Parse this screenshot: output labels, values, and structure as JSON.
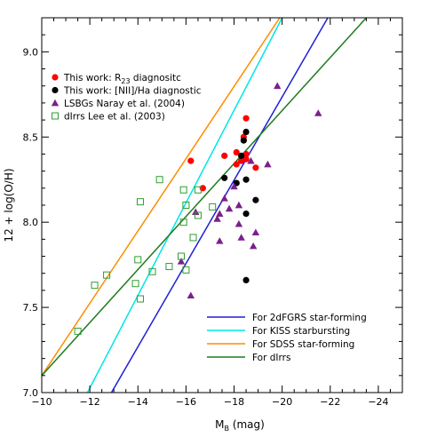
{
  "chart_data": {
    "type": "scatter",
    "xlabel": "M",
    "xlabel_sub": "B",
    "xlabel_unit": " (mag)",
    "ylabel": "12 + log(O/H)",
    "xlim": [
      -10,
      -25
    ],
    "ylim": [
      7.0,
      9.2
    ],
    "x_ticks": [
      {
        "value": -10,
        "label": "−10"
      },
      {
        "value": -12,
        "label": "−12"
      },
      {
        "value": -14,
        "label": "−14"
      },
      {
        "value": -16,
        "label": "−16"
      },
      {
        "value": -18,
        "label": "−18"
      },
      {
        "value": -20,
        "label": "−20"
      },
      {
        "value": -22,
        "label": "−22"
      },
      {
        "value": -24,
        "label": "−24"
      }
    ],
    "y_ticks": [
      {
        "value": 7.0,
        "label": "7.0"
      },
      {
        "value": 7.5,
        "label": "7.5"
      },
      {
        "value": 8.0,
        "label": "8.0"
      },
      {
        "value": 8.5,
        "label": "8.5"
      },
      {
        "value": 9.0,
        "label": "9.0"
      }
    ],
    "grid": false,
    "legend_points_placement": "top-left",
    "legend_lines_placement": "bottom-right",
    "series": [
      {
        "name": "This work: R",
        "name_sub": "23",
        "name_suffix": " diagnositc",
        "marker": "circle-filled",
        "color": "#ff0000",
        "points": [
          {
            "x": -16.2,
            "y": 8.36
          },
          {
            "x": -16.7,
            "y": 8.2
          },
          {
            "x": -17.6,
            "y": 8.39
          },
          {
            "x": -18.1,
            "y": 8.34
          },
          {
            "x": -18.1,
            "y": 8.41
          },
          {
            "x": -18.3,
            "y": 8.36
          },
          {
            "x": -18.4,
            "y": 8.5
          },
          {
            "x": -18.5,
            "y": 8.61
          },
          {
            "x": -18.5,
            "y": 8.4
          },
          {
            "x": -18.5,
            "y": 8.37
          },
          {
            "x": -18.9,
            "y": 8.32
          }
        ]
      },
      {
        "name": "This work: [NII]/Ha diagnostic",
        "marker": "circle-filled",
        "color": "#000000",
        "points": [
          {
            "x": -17.6,
            "y": 8.26
          },
          {
            "x": -18.1,
            "y": 8.23
          },
          {
            "x": -18.4,
            "y": 8.48
          },
          {
            "x": -18.5,
            "y": 8.53
          },
          {
            "x": -18.5,
            "y": 8.25
          },
          {
            "x": -18.5,
            "y": 8.05
          },
          {
            "x": -18.5,
            "y": 7.66
          },
          {
            "x": -18.9,
            "y": 8.13
          },
          {
            "x": -18.3,
            "y": 8.39
          }
        ]
      },
      {
        "name": "LSBGs Naray et al. (2004)",
        "marker": "triangle-filled",
        "color": "#7b1f8c",
        "points": [
          {
            "x": -15.8,
            "y": 7.77
          },
          {
            "x": -16.2,
            "y": 7.57
          },
          {
            "x": -16.4,
            "y": 8.06
          },
          {
            "x": -17.3,
            "y": 8.02
          },
          {
            "x": -17.4,
            "y": 7.89
          },
          {
            "x": -17.4,
            "y": 8.05
          },
          {
            "x": -17.6,
            "y": 8.14
          },
          {
            "x": -17.8,
            "y": 8.08
          },
          {
            "x": -18.0,
            "y": 8.21
          },
          {
            "x": -18.2,
            "y": 7.99
          },
          {
            "x": -18.2,
            "y": 8.1
          },
          {
            "x": -18.3,
            "y": 7.91
          },
          {
            "x": -18.7,
            "y": 8.36
          },
          {
            "x": -18.8,
            "y": 7.86
          },
          {
            "x": -18.9,
            "y": 7.94
          },
          {
            "x": -19.4,
            "y": 8.34
          },
          {
            "x": -19.8,
            "y": 8.8
          },
          {
            "x": -21.5,
            "y": 8.64
          }
        ]
      },
      {
        "name": "dIrrs Lee et al. (2003)",
        "marker": "square-open",
        "color": "#2e9e2e",
        "points": [
          {
            "x": -11.5,
            "y": 7.36
          },
          {
            "x": -12.2,
            "y": 7.63
          },
          {
            "x": -12.7,
            "y": 7.69
          },
          {
            "x": -13.9,
            "y": 7.64
          },
          {
            "x": -14.0,
            "y": 7.78
          },
          {
            "x": -14.1,
            "y": 8.12
          },
          {
            "x": -14.1,
            "y": 7.55
          },
          {
            "x": -14.6,
            "y": 7.71
          },
          {
            "x": -14.9,
            "y": 8.25
          },
          {
            "x": -15.3,
            "y": 7.74
          },
          {
            "x": -15.8,
            "y": 7.8
          },
          {
            "x": -15.9,
            "y": 8.0
          },
          {
            "x": -15.9,
            "y": 8.19
          },
          {
            "x": -16.0,
            "y": 8.1
          },
          {
            "x": -16.0,
            "y": 7.72
          },
          {
            "x": -16.3,
            "y": 7.91
          },
          {
            "x": -16.5,
            "y": 8.04
          },
          {
            "x": -16.5,
            "y": 8.19
          },
          {
            "x": -17.1,
            "y": 8.09
          }
        ]
      }
    ],
    "lines": [
      {
        "name": "For 2dFGRS star-forming",
        "color": "#1f1fd6",
        "points": [
          {
            "x": -12.9,
            "y": 7.0
          },
          {
            "x": -21.9,
            "y": 9.2
          }
        ]
      },
      {
        "name": "For KISS starbursting",
        "color": "#00e5e5",
        "points": [
          {
            "x": -11.9,
            "y": 7.0
          },
          {
            "x": -20.0,
            "y": 9.2
          }
        ]
      },
      {
        "name": "For SDSS star-forming",
        "color": "#ff8c00",
        "points": [
          {
            "x": -10.0,
            "y": 7.1
          },
          {
            "x": -19.9,
            "y": 9.2
          }
        ]
      },
      {
        "name": "For dIrrs",
        "color": "#1f7a1f",
        "points": [
          {
            "x": -10.0,
            "y": 7.1
          },
          {
            "x": -23.5,
            "y": 9.2
          }
        ]
      }
    ]
  }
}
